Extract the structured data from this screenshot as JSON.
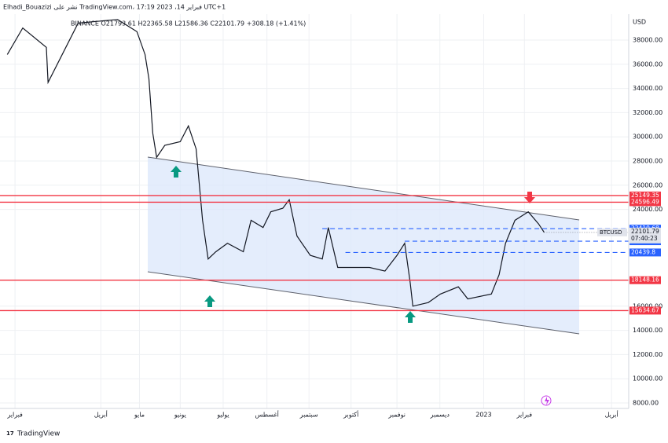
{
  "chart_data": {
    "type": "line",
    "title": "Elhadi_Bouazizi نشر على TradingView.com، فبراير 14، 2023 17:19 UTC+1",
    "subtitle": "BINANCE  O21793.61  H22365.58  L21586.36  C22101.79  +308.18 (+1.41%)",
    "axis_unit": "USD",
    "footer": "TradingView",
    "symbol": "BTCUSD",
    "countdown": "07:40:23",
    "last_price": 22101.79,
    "x": [
      -0.18,
      0.18,
      0.73,
      0.77,
      1.47,
      2.39,
      2.84,
      3.03,
      3.12,
      3.21,
      3.3,
      3.49,
      3.85,
      4.04,
      4.22,
      4.37,
      4.5,
      4.68,
      4.95,
      5.32,
      5.5,
      5.78,
      5.96,
      6.24,
      6.39,
      6.57,
      6.88,
      7.16,
      7.3,
      7.52,
      7.8,
      8.26,
      8.62,
      8.9,
      9.08,
      9.21,
      9.27,
      9.63,
      9.91,
      10.33,
      10.55,
      11.1,
      11.28,
      11.43,
      11.65,
      11.96,
      12.2,
      12.33
    ],
    "series": [
      {
        "name": "BTCUSD",
        "color": "#131722",
        "values": [
          36800,
          39000,
          37400,
          34500,
          39400,
          39700,
          38700,
          36800,
          34800,
          30300,
          28300,
          29300,
          29600,
          30900,
          29000,
          23100,
          19900,
          20500,
          21200,
          20500,
          23100,
          22500,
          23800,
          24100,
          24800,
          21800,
          20200,
          19900,
          22500,
          19200,
          19200,
          19200,
          18900,
          20200,
          21200,
          17900,
          16000,
          16300,
          17000,
          17600,
          16600,
          17000,
          18600,
          21200,
          23100,
          23800,
          22800,
          22101.79
        ]
      }
    ],
    "xlim": [
      -0.35,
      14.3
    ],
    "ylim": [
      7545,
      41312
    ],
    "xticks": [
      {
        "value": 0,
        "label": "فبراير"
      },
      {
        "value": 2,
        "label": "أبريل"
      },
      {
        "value": 2.9,
        "label": "مايو"
      },
      {
        "value": 3.85,
        "label": "يونيو"
      },
      {
        "value": 4.85,
        "label": "يوليو"
      },
      {
        "value": 5.87,
        "label": "أغسطس"
      },
      {
        "value": 6.85,
        "label": "سبتمبر"
      },
      {
        "value": 7.83,
        "label": "أكتوبر"
      },
      {
        "value": 8.9,
        "label": "نوفمبر"
      },
      {
        "value": 9.9,
        "label": "ديسمبر"
      },
      {
        "value": 10.92,
        "label": "2023"
      },
      {
        "value": 11.87,
        "label": "فبراير"
      },
      {
        "value": 13.9,
        "label": "أبريل"
      }
    ],
    "yticks": [
      {
        "value": 8000,
        "label": "8000.00"
      },
      {
        "value": 10000,
        "label": "10000.00"
      },
      {
        "value": 12000,
        "label": "12000.00"
      },
      {
        "value": 14000,
        "label": "14000.00"
      },
      {
        "value": 16000,
        "label": "16000.00"
      },
      {
        "value": 24000,
        "label": "24000.00"
      },
      {
        "value": 26000,
        "label": "26000.00"
      },
      {
        "value": 28000,
        "label": "28000.00"
      },
      {
        "value": 30000,
        "label": "30000.00"
      },
      {
        "value": 32000,
        "label": "32000.00"
      },
      {
        "value": 34000,
        "label": "34000.00"
      },
      {
        "value": 36000,
        "label": "36000.00"
      },
      {
        "value": 38000,
        "label": "38000.00"
      }
    ],
    "grid": true,
    "levels": [
      {
        "value": 25149.35,
        "color": "#f23645",
        "dashed": false,
        "x_start": -0.35
      },
      {
        "value": 24596.49,
        "color": "#f23645",
        "dashed": false,
        "x_start": -0.35
      },
      {
        "value": 18148.16,
        "color": "#f23645",
        "dashed": false,
        "x_start": -0.35
      },
      {
        "value": 15634.67,
        "color": "#f23645",
        "dashed": false,
        "x_start": -0.35
      },
      {
        "value": 22410.68,
        "color": "#2962ff",
        "dashed": true,
        "x_start": 7.16
      },
      {
        "value": 21372.85,
        "color": "#2962ff",
        "dashed": true,
        "x_start": 9.08
      },
      {
        "value": 20439.8,
        "color": "#2962ff",
        "dashed": true,
        "x_start": 7.7
      }
    ]
  }
}
